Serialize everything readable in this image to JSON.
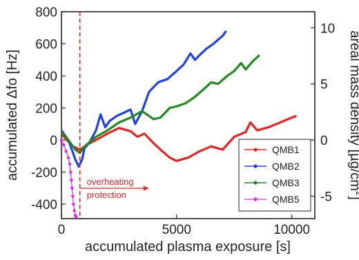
{
  "chart_data": {
    "type": "line",
    "xlabel": "accumulated plasma exposure [s]",
    "ylabel": "accumulated Δfo [Hz]",
    "y2label": "areal mass density [µg/cm",
    "y2label_sup": "2",
    "y2label_end": "]",
    "xlim": [
      0,
      11000
    ],
    "ylim": [
      -490,
      800
    ],
    "y2lim": [
      -7.0,
      11.43
    ],
    "x_ticks": [
      0,
      5000,
      10000
    ],
    "x_tick_labels": [
      "0",
      "5000",
      "10000"
    ],
    "y_ticks": [
      -400,
      -200,
      0,
      200,
      400,
      600,
      800
    ],
    "y_tick_labels": [
      "-400",
      "-200",
      "0",
      "200",
      "400",
      "600",
      "800"
    ],
    "y2_ticks": [
      -5,
      0,
      5,
      10
    ],
    "y2_tick_labels": [
      "-5",
      "0",
      "5",
      "10"
    ],
    "grid": false,
    "legend_position": "bottom-right",
    "series": [
      {
        "name": "QMB1",
        "color": "#e8201f",
        "points": [
          [
            0,
            40
          ],
          [
            200,
            5
          ],
          [
            500,
            -40
          ],
          [
            800,
            -60
          ],
          [
            1100,
            -30
          ],
          [
            1500,
            0
          ],
          [
            2000,
            40
          ],
          [
            2500,
            75
          ],
          [
            3000,
            55
          ],
          [
            3300,
            20
          ],
          [
            3600,
            40
          ],
          [
            4000,
            -20
          ],
          [
            4300,
            -60
          ],
          [
            4700,
            -110
          ],
          [
            5000,
            -130
          ],
          [
            5500,
            -110
          ],
          [
            6000,
            -70
          ],
          [
            6500,
            -40
          ],
          [
            7000,
            -60
          ],
          [
            7500,
            20
          ],
          [
            8000,
            50
          ],
          [
            8200,
            110
          ],
          [
            8500,
            60
          ],
          [
            9000,
            80
          ],
          [
            9500,
            110
          ],
          [
            10000,
            140
          ],
          [
            10200,
            150
          ]
        ]
      },
      {
        "name": "QMB2",
        "color": "#1f3fe8",
        "points": [
          [
            0,
            60
          ],
          [
            300,
            0
          ],
          [
            600,
            -120
          ],
          [
            750,
            -165
          ],
          [
            900,
            -120
          ],
          [
            1000,
            -50
          ],
          [
            1200,
            -20
          ],
          [
            1500,
            60
          ],
          [
            1700,
            160
          ],
          [
            1900,
            80
          ],
          [
            2100,
            120
          ],
          [
            2400,
            150
          ],
          [
            2700,
            170
          ],
          [
            3000,
            190
          ],
          [
            3200,
            100
          ],
          [
            3500,
            180
          ],
          [
            3800,
            300
          ],
          [
            4200,
            360
          ],
          [
            4600,
            380
          ],
          [
            5000,
            430
          ],
          [
            5300,
            470
          ],
          [
            5600,
            540
          ],
          [
            5800,
            500
          ],
          [
            6000,
            530
          ],
          [
            6300,
            570
          ],
          [
            6600,
            600
          ],
          [
            7000,
            650
          ],
          [
            7150,
            680
          ]
        ]
      },
      {
        "name": "QMB3",
        "color": "#1e8b1e",
        "points": [
          [
            0,
            50
          ],
          [
            300,
            0
          ],
          [
            600,
            -60
          ],
          [
            800,
            -80
          ],
          [
            1000,
            -40
          ],
          [
            1500,
            20
          ],
          [
            2000,
            60
          ],
          [
            2500,
            110
          ],
          [
            3000,
            140
          ],
          [
            3500,
            180
          ],
          [
            4000,
            130
          ],
          [
            4300,
            140
          ],
          [
            4700,
            200
          ],
          [
            5000,
            210
          ],
          [
            5400,
            230
          ],
          [
            5800,
            270
          ],
          [
            6200,
            320
          ],
          [
            6500,
            360
          ],
          [
            6800,
            350
          ],
          [
            7200,
            400
          ],
          [
            7500,
            430
          ],
          [
            7800,
            480
          ],
          [
            8000,
            440
          ],
          [
            8300,
            490
          ],
          [
            8600,
            530
          ]
        ]
      },
      {
        "name": "QMB5",
        "color": "#ee22ee",
        "marker": "dot",
        "points": [
          [
            0,
            0
          ],
          [
            100,
            -30
          ],
          [
            200,
            -70
          ],
          [
            300,
            -110
          ],
          [
            360,
            -150
          ],
          [
            400,
            -200
          ],
          [
            430,
            -250
          ],
          [
            460,
            -300
          ],
          [
            490,
            -350
          ],
          [
            520,
            -400
          ],
          [
            560,
            -440
          ],
          [
            600,
            -470
          ],
          [
            640,
            -480
          ]
        ]
      }
    ],
    "annotations": {
      "overheating_line_x": 800,
      "overheating_text_line1": "overheating",
      "overheating_text_line2": "protection"
    }
  }
}
